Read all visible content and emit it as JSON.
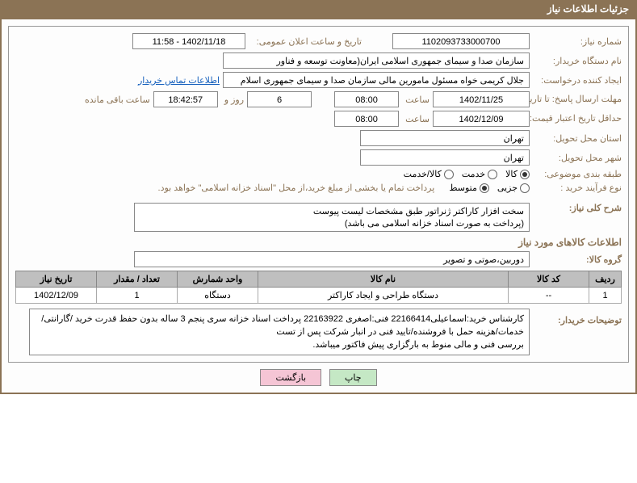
{
  "header": {
    "title": "جزئیات اطلاعات نیاز"
  },
  "need_number": {
    "label": "شماره نیاز:",
    "value": "1102093733000700"
  },
  "announce": {
    "label": "تاریخ و ساعت اعلان عمومی:",
    "value": "1402/11/18 - 11:58"
  },
  "buyer_org": {
    "label": "نام دستگاه خریدار:",
    "value": "سازمان صدا و سیمای جمهوری اسلامی ایران(معاونت توسعه و فناور"
  },
  "requester": {
    "label": "ایجاد کننده درخواست:",
    "value": "جلال کریمی خواه مسئول مامورین مالی  سازمان صدا و سیمای جمهوری اسلام",
    "contact_link": "اطلاعات تماس خریدار"
  },
  "deadline": {
    "label": "مهلت ارسال پاسخ: تا تاریخ:",
    "date": "1402/11/25",
    "time_label": "ساعت",
    "time": "08:00",
    "days": "6",
    "days_label": "روز و",
    "remain_time": "18:42:57",
    "remain_label": "ساعت باقی مانده"
  },
  "validity": {
    "label": "حداقل تاریخ اعتبار قیمت: تا تاریخ:",
    "date": "1402/12/09",
    "time_label": "ساعت",
    "time": "08:00"
  },
  "province": {
    "label": "استان محل تحویل:",
    "value": "تهران"
  },
  "city": {
    "label": "شهر محل تحویل:",
    "value": "تهران"
  },
  "category": {
    "label": "طبقه بندی موضوعی:",
    "options": {
      "goods": "کالا",
      "service": "خدمت",
      "both": "کالا/خدمت"
    },
    "selected": "goods"
  },
  "process": {
    "label": "نوع فرآیند خرید :",
    "options": {
      "small": "جزیی",
      "medium": "متوسط"
    },
    "selected": "medium",
    "note": "پرداخت تمام یا بخشی از مبلغ خرید،از محل \"اسناد خزانه اسلامی\" خواهد بود."
  },
  "summary": {
    "label": "شرح کلی نیاز:",
    "text": "سخت افزار کاراکتر ژنراتور طبق مشخصات لیست پیوست\n(پرداخت به صورت اسناد خزانه اسلامی می باشد)"
  },
  "goods_section": {
    "title": "اطلاعات کالاهای مورد نیاز"
  },
  "goods_group": {
    "label": "گروه کالا:",
    "value": "دوربین،صوتی و تصویر"
  },
  "table": {
    "headers": {
      "row": "ردیف",
      "code": "کد کالا",
      "name": "نام کالا",
      "unit": "واحد شمارش",
      "qty": "تعداد / مقدار",
      "date": "تاریخ نیاز"
    },
    "rows": [
      {
        "row": "1",
        "code": "--",
        "name": "دستگاه طراحی و ایجاد کاراکتر",
        "unit": "دستگاه",
        "qty": "1",
        "date": "1402/12/09"
      }
    ]
  },
  "buyer_notes": {
    "label": "توضیحات خریدار:",
    "text": "کارشناس خرید:اسماعیلی22166414 فنی:اصغری 22163922  پرداخت اسناد خزانه سری پنجم 3 ساله بدون حفظ قدرت خرید /گارانتی/خدمات/هزینه حمل با فروشنده/تایید فنی در انبار شرکت پس از تست\nبررسی فنی و مالی منوط به بارگزاری پیش فاکتور میباشد."
  },
  "buttons": {
    "print": "چاپ",
    "back": "بازگشت"
  },
  "colors": {
    "brown": "#8b7355",
    "header_text": "#ffffff",
    "field_border": "#888888",
    "th_bg": "#bfbfbf",
    "link": "#1560bd",
    "btn_green": "#c5e8c5",
    "btn_pink": "#f5c5d5"
  }
}
